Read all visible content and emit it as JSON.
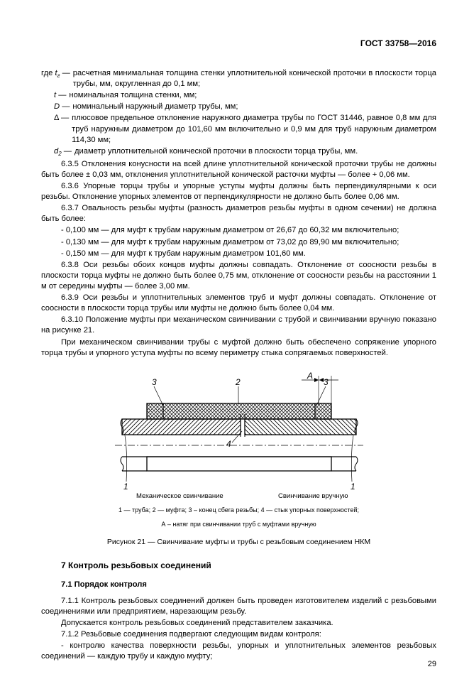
{
  "header": {
    "standard": "ГОСТ 33758—2016"
  },
  "defs": [
    {
      "sym": "где <span class='ital'>t<sub>г</sub></span> —",
      "txt": "расчетная минимальная толщина стенки уплотнительной конической проточки в плоскости торца трубы, мм, округленная до 0,1 мм;"
    },
    {
      "sym": "<span class='ital'>t</span> —",
      "txt": "номинальная толщина стенки, мм;"
    },
    {
      "sym": "<span class='ital'>D</span> —",
      "txt": "номинальный наружный диаметр трубы, мм;"
    },
    {
      "sym": "Δ —",
      "txt": "плюсовое предельное отклонение наружного диаметра трубы по ГОСТ 31446, равное 0,8 мм для труб наружным диаметром до 101,60 мм включительно и 0,9 мм для труб наружным диаметром 114,30 мм;"
    },
    {
      "sym": "<span class='ital'>d<sub>2</sub></span> —",
      "txt": "диаметр уплотнительной конической проточки в плоскости торца трубы, мм."
    }
  ],
  "paras": [
    "6.3.5 Отклонения конусности на всей длине уплотнительной конической проточки трубы не должны быть более ± 0,03 мм, отклонения уплотнительной конической расточки муфты — более + 0,06 мм.",
    "6.3.6 Упорные торцы трубы и упорные уступы муфты должны быть перпендикулярными к оси резьбы. Отклонение упорных элементов от перпендикулярности не должно быть более 0,06 мм.",
    "6.3.7 Овальность резьбы муфты (разность диаметров резьбы муфты в одном сечении) не должна быть более:",
    "- 0,100 мм — для муфт к трубам наружным диаметром от 26,67 до 60,32 мм включительно;",
    "- 0,130 мм — для муфт к трубам наружным диаметром от 73,02 до 89,90 мм включительно;",
    "- 0,150 мм — для муфт к трубам наружным диаметром 101,60 мм.",
    "6.3.8 Оси резьбы обоих концов муфты должны совпадать. Отклонение от соосности резьбы в плоскости торца муфты не должно быть более 0,75 мм, отклонение от соосности резьбы на расстоянии 1 м от середины муфты — более 3,00 мм.",
    "6.3.9 Оси резьбы и уплотнительных элементов труб и муфт должны совпадать. Отклонение от соосности в плоскости торца трубы или муфты не должно быть более 0,04 мм.",
    "6.3.10 Положение муфты при механическом свинчивании с трубой и свинчивании вручную показано на рисунке 21.",
    "При механическом свинчивании трубы с муфтой должно быть обеспечено сопряжение упорного торца трубы и упорного уступа муфты по всему периметру стыка сопрягаемых поверхностей."
  ],
  "figure": {
    "label_left": "Механическое свинчивание",
    "label_right": "Свинчивание вручную",
    "legend1": "1 — труба; 2 — муфта; 3 – конец сбега резьбы; 4 — стык упорных поверхностей;",
    "legend2": "А – натяг при свинчивании труб с муфтами вручную",
    "caption": "Рисунок 21 — Свинчивание муфты и трубы с резьбовым соединением НКМ",
    "numbers": {
      "n1": "1",
      "n2": "2",
      "n3": "3",
      "n4": "4",
      "A": "А"
    }
  },
  "section7": {
    "title": "7 Контроль резьбовых соединений",
    "sub1": "7.1 Порядок контроля",
    "p1": "7.1.1 Контроль резьбовых соединений должен быть проведен изготовителем изделий с резьбовыми соединениями или предприятием, нарезающим резьбу.",
    "p2": "Допускается контроль резьбовых соединений представителем заказчика.",
    "p3": "7.1.2 Резьбовые соединения подвергают следующим видам контроля:",
    "p4": "- контролю качества поверхности резьбы, упорных и уплотнительных элементов резьбовых соединений — каждую трубу и каждую муфту;"
  },
  "page_number": "29"
}
